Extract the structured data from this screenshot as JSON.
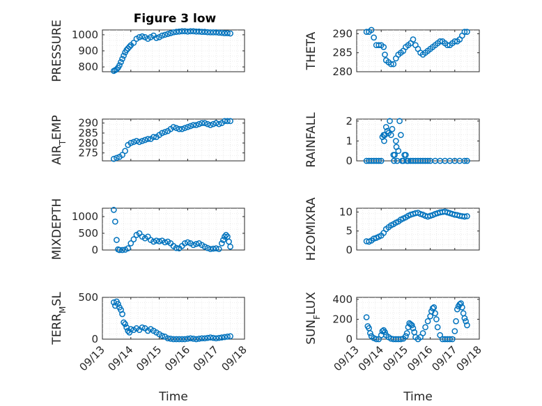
{
  "figure_title": "Figure 3 low",
  "marker_color": "#0072BD",
  "x_tick_labels": [
    "09/13",
    "09/14",
    "09/15",
    "09/16",
    "09/17",
    "09/18"
  ],
  "x_axis_label": "Time",
  "chart_data": [
    {
      "type": "scatter",
      "ylabel": "PRESSURE",
      "x_units": "days since 09/13",
      "xlim": [
        0,
        5
      ],
      "ylim": [
        770,
        1030
      ],
      "yticks": [
        800,
        900,
        1000
      ],
      "grid": true,
      "x": [
        0.4,
        0.45,
        0.5,
        0.55,
        0.6,
        0.65,
        0.7,
        0.75,
        0.8,
        0.85,
        0.9,
        0.95,
        1.0,
        1.1,
        1.2,
        1.3,
        1.4,
        1.5,
        1.6,
        1.7,
        1.8,
        1.9,
        2.0,
        2.1,
        2.2,
        2.3,
        2.4,
        2.5,
        2.6,
        2.7,
        2.8,
        2.9,
        3.0,
        3.1,
        3.2,
        3.3,
        3.4,
        3.5,
        3.6,
        3.7,
        3.8,
        3.9,
        4.0,
        4.1,
        4.2,
        4.3,
        4.4,
        4.5
      ],
      "y": [
        775,
        780,
        785,
        795,
        810,
        830,
        850,
        870,
        890,
        905,
        915,
        925,
        935,
        950,
        975,
        985,
        990,
        985,
        975,
        985,
        995,
        980,
        985,
        995,
        1000,
        1005,
        1010,
        1015,
        1018,
        1020,
        1022,
        1022,
        1020,
        1022,
        1022,
        1020,
        1020,
        1018,
        1018,
        1016,
        1015,
        1015,
        1015,
        1013,
        1012,
        1010,
        1010,
        1008
      ]
    },
    {
      "type": "scatter",
      "ylabel": "THETA",
      "x_units": "days since 09/13",
      "xlim": [
        0,
        5
      ],
      "ylim": [
        280,
        291
      ],
      "yticks": [
        280,
        285,
        290
      ],
      "grid": true,
      "x": [
        0.4,
        0.5,
        0.6,
        0.7,
        0.8,
        0.9,
        1.0,
        1.1,
        1.15,
        1.2,
        1.3,
        1.4,
        1.5,
        1.6,
        1.7,
        1.8,
        1.9,
        2.0,
        2.1,
        2.2,
        2.3,
        2.4,
        2.5,
        2.6,
        2.7,
        2.8,
        2.9,
        3.0,
        3.1,
        3.2,
        3.3,
        3.4,
        3.5,
        3.6,
        3.7,
        3.8,
        3.9,
        4.0,
        4.1,
        4.2,
        4.3,
        4.4,
        4.5
      ],
      "y": [
        290.5,
        290.5,
        291,
        289,
        287,
        287,
        287,
        286.5,
        284.5,
        283,
        282.5,
        282,
        282,
        283.5,
        284.5,
        285,
        285.5,
        286.5,
        287,
        287.5,
        288.5,
        287,
        286,
        285,
        284.5,
        285,
        285.5,
        286,
        286.5,
        287,
        287.5,
        288,
        288,
        287.5,
        287,
        287,
        287.5,
        288,
        288,
        288.5,
        289.5,
        290.5,
        290.5
      ]
    },
    {
      "type": "scatter",
      "ylabel": "AIR_TEMP",
      "x_units": "days since 09/13",
      "xlim": [
        0,
        5
      ],
      "ylim": [
        271,
        292
      ],
      "yticks": [
        275,
        280,
        285,
        290
      ],
      "grid": true,
      "x": [
        0.4,
        0.5,
        0.6,
        0.7,
        0.8,
        0.9,
        1.0,
        1.1,
        1.2,
        1.3,
        1.4,
        1.5,
        1.6,
        1.7,
        1.8,
        1.9,
        2.0,
        2.1,
        2.2,
        2.3,
        2.4,
        2.5,
        2.6,
        2.7,
        2.8,
        2.9,
        3.0,
        3.1,
        3.2,
        3.3,
        3.4,
        3.5,
        3.6,
        3.7,
        3.8,
        3.9,
        4.0,
        4.1,
        4.2,
        4.3,
        4.4,
        4.5
      ],
      "y": [
        272,
        272.5,
        273,
        274,
        276,
        279,
        280,
        280.5,
        281,
        280.5,
        281,
        281.5,
        282,
        282,
        283,
        283,
        284,
        285,
        285.5,
        286,
        287,
        288,
        287.5,
        287,
        287,
        287.5,
        288,
        288.5,
        289,
        289,
        289.5,
        290,
        290,
        289.5,
        289,
        289.5,
        290,
        289.5,
        290,
        291,
        291,
        291
      ]
    },
    {
      "type": "scatter",
      "ylabel": "RAINFALL",
      "x_units": "days since 09/13",
      "xlim": [
        0,
        5
      ],
      "ylim": [
        0,
        2.1
      ],
      "yticks": [
        0,
        1,
        2
      ],
      "grid": true,
      "x": [
        0.4,
        0.5,
        0.6,
        0.7,
        0.8,
        0.9,
        1.0,
        1.05,
        1.1,
        1.12,
        1.15,
        1.2,
        1.25,
        1.3,
        1.35,
        1.4,
        1.45,
        1.5,
        1.52,
        1.55,
        1.6,
        1.62,
        1.65,
        1.7,
        1.75,
        1.8,
        1.85,
        1.9,
        1.95,
        2.0,
        2.05,
        2.1,
        2.2,
        2.3,
        2.4,
        2.5,
        2.6,
        2.7,
        2.8,
        2.9,
        3.0,
        3.2,
        3.4,
        3.6,
        3.8,
        4.0,
        4.2,
        4.4,
        4.5
      ],
      "y": [
        0,
        0,
        0,
        0,
        0,
        0,
        0,
        1.2,
        1.3,
        1.0,
        1.3,
        1.7,
        1.5,
        1.4,
        2.0,
        1.3,
        1.6,
        0.3,
        0,
        0.3,
        1.0,
        0.7,
        0,
        0.5,
        2.0,
        1.3,
        0,
        0,
        0.3,
        0.3,
        0,
        0,
        0,
        0,
        0,
        0,
        0,
        0,
        0,
        0,
        0,
        0,
        0,
        0,
        0,
        0,
        0,
        0,
        0
      ]
    },
    {
      "type": "scatter",
      "ylabel": "MIXDEPTH",
      "x_units": "days since 09/13",
      "xlim": [
        0,
        5
      ],
      "ylim": [
        0,
        1250
      ],
      "yticks": [
        0,
        500,
        1000
      ],
      "grid": true,
      "x": [
        0.4,
        0.45,
        0.5,
        0.55,
        0.6,
        0.7,
        0.8,
        0.9,
        1.0,
        1.1,
        1.2,
        1.3,
        1.4,
        1.5,
        1.6,
        1.7,
        1.8,
        1.9,
        2.0,
        2.1,
        2.2,
        2.3,
        2.4,
        2.5,
        2.6,
        2.7,
        2.8,
        2.9,
        3.0,
        3.1,
        3.2,
        3.3,
        3.4,
        3.5,
        3.6,
        3.7,
        3.8,
        3.9,
        4.0,
        4.1,
        4.2,
        4.25,
        4.3,
        4.35,
        4.4,
        4.45,
        4.5
      ],
      "y": [
        1200,
        850,
        300,
        20,
        0,
        0,
        10,
        50,
        200,
        320,
        450,
        500,
        400,
        350,
        400,
        300,
        250,
        280,
        260,
        280,
        230,
        250,
        200,
        120,
        60,
        50,
        120,
        200,
        230,
        200,
        150,
        180,
        200,
        150,
        100,
        60,
        30,
        40,
        50,
        30,
        200,
        300,
        400,
        450,
        400,
        250,
        100
      ]
    },
    {
      "type": "scatter",
      "ylabel": "H2OMIXRA",
      "x_units": "days since 09/13",
      "xlim": [
        0,
        5
      ],
      "ylim": [
        0,
        11
      ],
      "yticks": [
        0,
        5,
        10
      ],
      "grid": true,
      "x": [
        0.4,
        0.5,
        0.6,
        0.7,
        0.8,
        0.9,
        1.0,
        1.1,
        1.2,
        1.3,
        1.4,
        1.5,
        1.6,
        1.7,
        1.8,
        1.9,
        2.0,
        2.1,
        2.2,
        2.3,
        2.4,
        2.5,
        2.6,
        2.7,
        2.8,
        2.9,
        3.0,
        3.1,
        3.2,
        3.3,
        3.4,
        3.5,
        3.6,
        3.7,
        3.8,
        3.9,
        4.0,
        4.1,
        4.2,
        4.3,
        4.4,
        4.5
      ],
      "y": [
        2.3,
        2.2,
        2.5,
        3.0,
        3.2,
        3.5,
        3.8,
        4.5,
        5.5,
        6.0,
        6.5,
        6.8,
        7.2,
        7.5,
        8.0,
        8.3,
        8.6,
        9.0,
        9.3,
        9.5,
        9.7,
        9.8,
        9.5,
        9.3,
        9.0,
        8.8,
        9.0,
        9.2,
        9.5,
        9.7,
        9.9,
        10.0,
        10.1,
        9.9,
        9.7,
        9.5,
        9.3,
        9.2,
        9.0,
        8.9,
        8.8,
        8.9
      ]
    },
    {
      "type": "scatter",
      "ylabel": "TERR_MSL",
      "x_units": "days since 09/13",
      "xlim": [
        0,
        5
      ],
      "ylim": [
        0,
        500
      ],
      "yticks": [
        0,
        500
      ],
      "grid": true,
      "x": [
        0.4,
        0.45,
        0.5,
        0.55,
        0.6,
        0.65,
        0.7,
        0.75,
        0.8,
        0.85,
        0.9,
        0.95,
        1.0,
        1.1,
        1.2,
        1.3,
        1.4,
        1.5,
        1.6,
        1.7,
        1.8,
        1.9,
        2.0,
        2.1,
        2.2,
        2.3,
        2.4,
        2.5,
        2.6,
        2.7,
        2.8,
        2.9,
        3.0,
        3.1,
        3.2,
        3.3,
        3.4,
        3.5,
        3.6,
        3.7,
        3.8,
        3.9,
        4.0,
        4.1,
        4.2,
        4.3,
        4.4,
        4.5
      ],
      "y": [
        440,
        400,
        450,
        420,
        380,
        350,
        300,
        200,
        180,
        140,
        100,
        80,
        120,
        110,
        130,
        110,
        140,
        130,
        100,
        120,
        100,
        80,
        60,
        40,
        30,
        10,
        5,
        0,
        0,
        0,
        0,
        0,
        5,
        10,
        5,
        0,
        5,
        10,
        10,
        15,
        20,
        15,
        10,
        15,
        20,
        25,
        30,
        35
      ]
    },
    {
      "type": "scatter",
      "ylabel": "SUN_FLUX",
      "x_units": "days since 09/13",
      "xlim": [
        0,
        5
      ],
      "ylim": [
        0,
        420
      ],
      "yticks": [
        0,
        200,
        400
      ],
      "grid": true,
      "x": [
        0.4,
        0.45,
        0.5,
        0.55,
        0.6,
        0.7,
        0.8,
        0.9,
        1.0,
        1.05,
        1.1,
        1.15,
        1.2,
        1.3,
        1.4,
        1.5,
        1.6,
        1.7,
        1.8,
        1.9,
        2.0,
        2.05,
        2.1,
        2.15,
        2.2,
        2.25,
        2.3,
        2.35,
        2.4,
        2.5,
        2.6,
        2.7,
        2.8,
        2.9,
        3.0,
        3.05,
        3.1,
        3.15,
        3.2,
        3.25,
        3.3,
        3.4,
        3.5,
        3.6,
        3.7,
        3.8,
        3.9,
        4.0,
        4.05,
        4.1,
        4.15,
        4.2,
        4.25,
        4.3,
        4.35,
        4.4,
        4.45,
        4.5
      ],
      "y": [
        220,
        130,
        110,
        60,
        30,
        10,
        0,
        0,
        40,
        80,
        90,
        70,
        40,
        20,
        5,
        0,
        0,
        0,
        0,
        5,
        30,
        60,
        120,
        160,
        150,
        140,
        110,
        70,
        20,
        0,
        20,
        60,
        120,
        180,
        230,
        280,
        310,
        320,
        260,
        200,
        120,
        40,
        0,
        0,
        0,
        0,
        0,
        80,
        180,
        300,
        330,
        350,
        360,
        320,
        260,
        210,
        180,
        140
      ]
    }
  ]
}
